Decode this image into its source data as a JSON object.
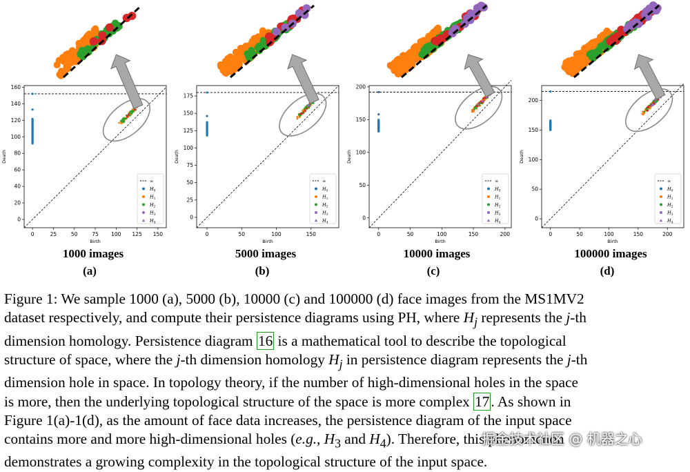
{
  "panels": [
    {
      "label": "(a)",
      "title": "1000 images",
      "xticks": [
        "0",
        "25",
        "50",
        "75",
        "100",
        "125",
        "150"
      ],
      "yticks": [
        "0",
        "20",
        "40",
        "60",
        "80",
        "100",
        "120",
        "140",
        "160"
      ],
      "xlabel": "Birth",
      "ylabel": "Death",
      "xlim": [
        -10,
        160
      ],
      "ylim": [
        -10,
        162
      ],
      "inf": 152,
      "h0": {
        "x": 0,
        "y_min": 92,
        "y_max": 122,
        "outlier": 133
      },
      "cluster": {
        "cx": 110,
        "cy": 118
      },
      "legend": [
        "∞",
        "H0",
        "H1",
        "H2",
        "H3",
        "H4"
      ]
    },
    {
      "label": "(b)",
      "title": "5000 images",
      "xticks": [
        "0",
        "50",
        "100",
        "150"
      ],
      "yticks": [
        "0",
        "25",
        "50",
        "75",
        "100",
        "125",
        "150",
        "175"
      ],
      "xlabel": "Birth",
      "ylabel": "Death",
      "xlim": [
        -15,
        190
      ],
      "ylim": [
        -15,
        190
      ],
      "inf": 180,
      "h0": {
        "x": 0,
        "y_min": 118,
        "y_max": 138,
        "outlier": 146
      },
      "cluster": {
        "cx": 135,
        "cy": 145
      },
      "legend": [
        "∞",
        "H0",
        "H1",
        "H2",
        "H3",
        "H4"
      ]
    },
    {
      "label": "(c)",
      "title": "10000 images",
      "xticks": [
        "0",
        "50",
        "100",
        "150",
        "200"
      ],
      "yticks": [
        "0",
        "50",
        "100",
        "150",
        "200"
      ],
      "xlabel": "Birth",
      "ylabel": "Death",
      "xlim": [
        -15,
        210
      ],
      "ylim": [
        -15,
        202
      ],
      "inf": 192,
      "h0": {
        "x": 0,
        "y_min": 132,
        "y_max": 150,
        "outlier": 158
      },
      "cluster": {
        "cx": 155,
        "cy": 165
      },
      "legend": [
        "∞",
        "H0",
        "H1",
        "H2",
        "H3",
        "H4"
      ]
    },
    {
      "label": "(d)",
      "title": "100000 images",
      "xticks": [
        "0",
        "50",
        "100",
        "150",
        "200"
      ],
      "yticks": [
        "0",
        "50",
        "100",
        "150",
        "200"
      ],
      "xlabel": "Birth",
      "ylabel": "Death",
      "xlim": [
        -15,
        228
      ],
      "ylim": [
        -15,
        225
      ],
      "inf": 215,
      "h0": {
        "x": 0,
        "y_min": 150,
        "y_max": 165,
        "outlier": 166
      },
      "cluster": {
        "cx": 165,
        "cy": 180
      },
      "legend": [
        "∞",
        "H0",
        "H1",
        "H2",
        "H3",
        "H4"
      ]
    }
  ],
  "colors": {
    "H0": "#1f77b4",
    "H1": "#ff7f0e",
    "H2": "#2ca02c",
    "H3": "#d62728",
    "H4": "#9467bd"
  },
  "caption_lines": [
    "Figure 1: We sample 1000 (a), 5000 (b), 10000 (c) and 100000 (d) face images from the MS1MV2",
    "dataset respectively, and compute their persistence diagrams using PH, where <i>H<sub>j</sub></i> represents the <i>j</i>-th",
    "dimension homology. Persistence diagram <span class=\"ref\">16</span> is a mathematical tool to describe the topological",
    "structure of space, where the <i>j</i>-th dimension homology <i>H<sub>j</sub></i> in persistence diagram represents the <i>j</i>-th",
    "dimension hole in space. In topology theory, if the number of high-dimensional holes in the space",
    "is more, then the underlying topological structure of the space is more complex <span class=\"ref\">17</span>. As shown in",
    "Figure 1(a)-1(d), as the amount of face data increases, the persistence diagram of the input space",
    "contains more and more high-dimensional holes (<i>e.g.</i>, <i>H</i><sub>3</sub> and <i>H</i><sub>4</sub>). Therefore, this phenomenon",
    "demonstrates a growing complexity in the topological structure of the input space."
  ],
  "watermark": "掘金技术社区 @ 机器之心"
}
